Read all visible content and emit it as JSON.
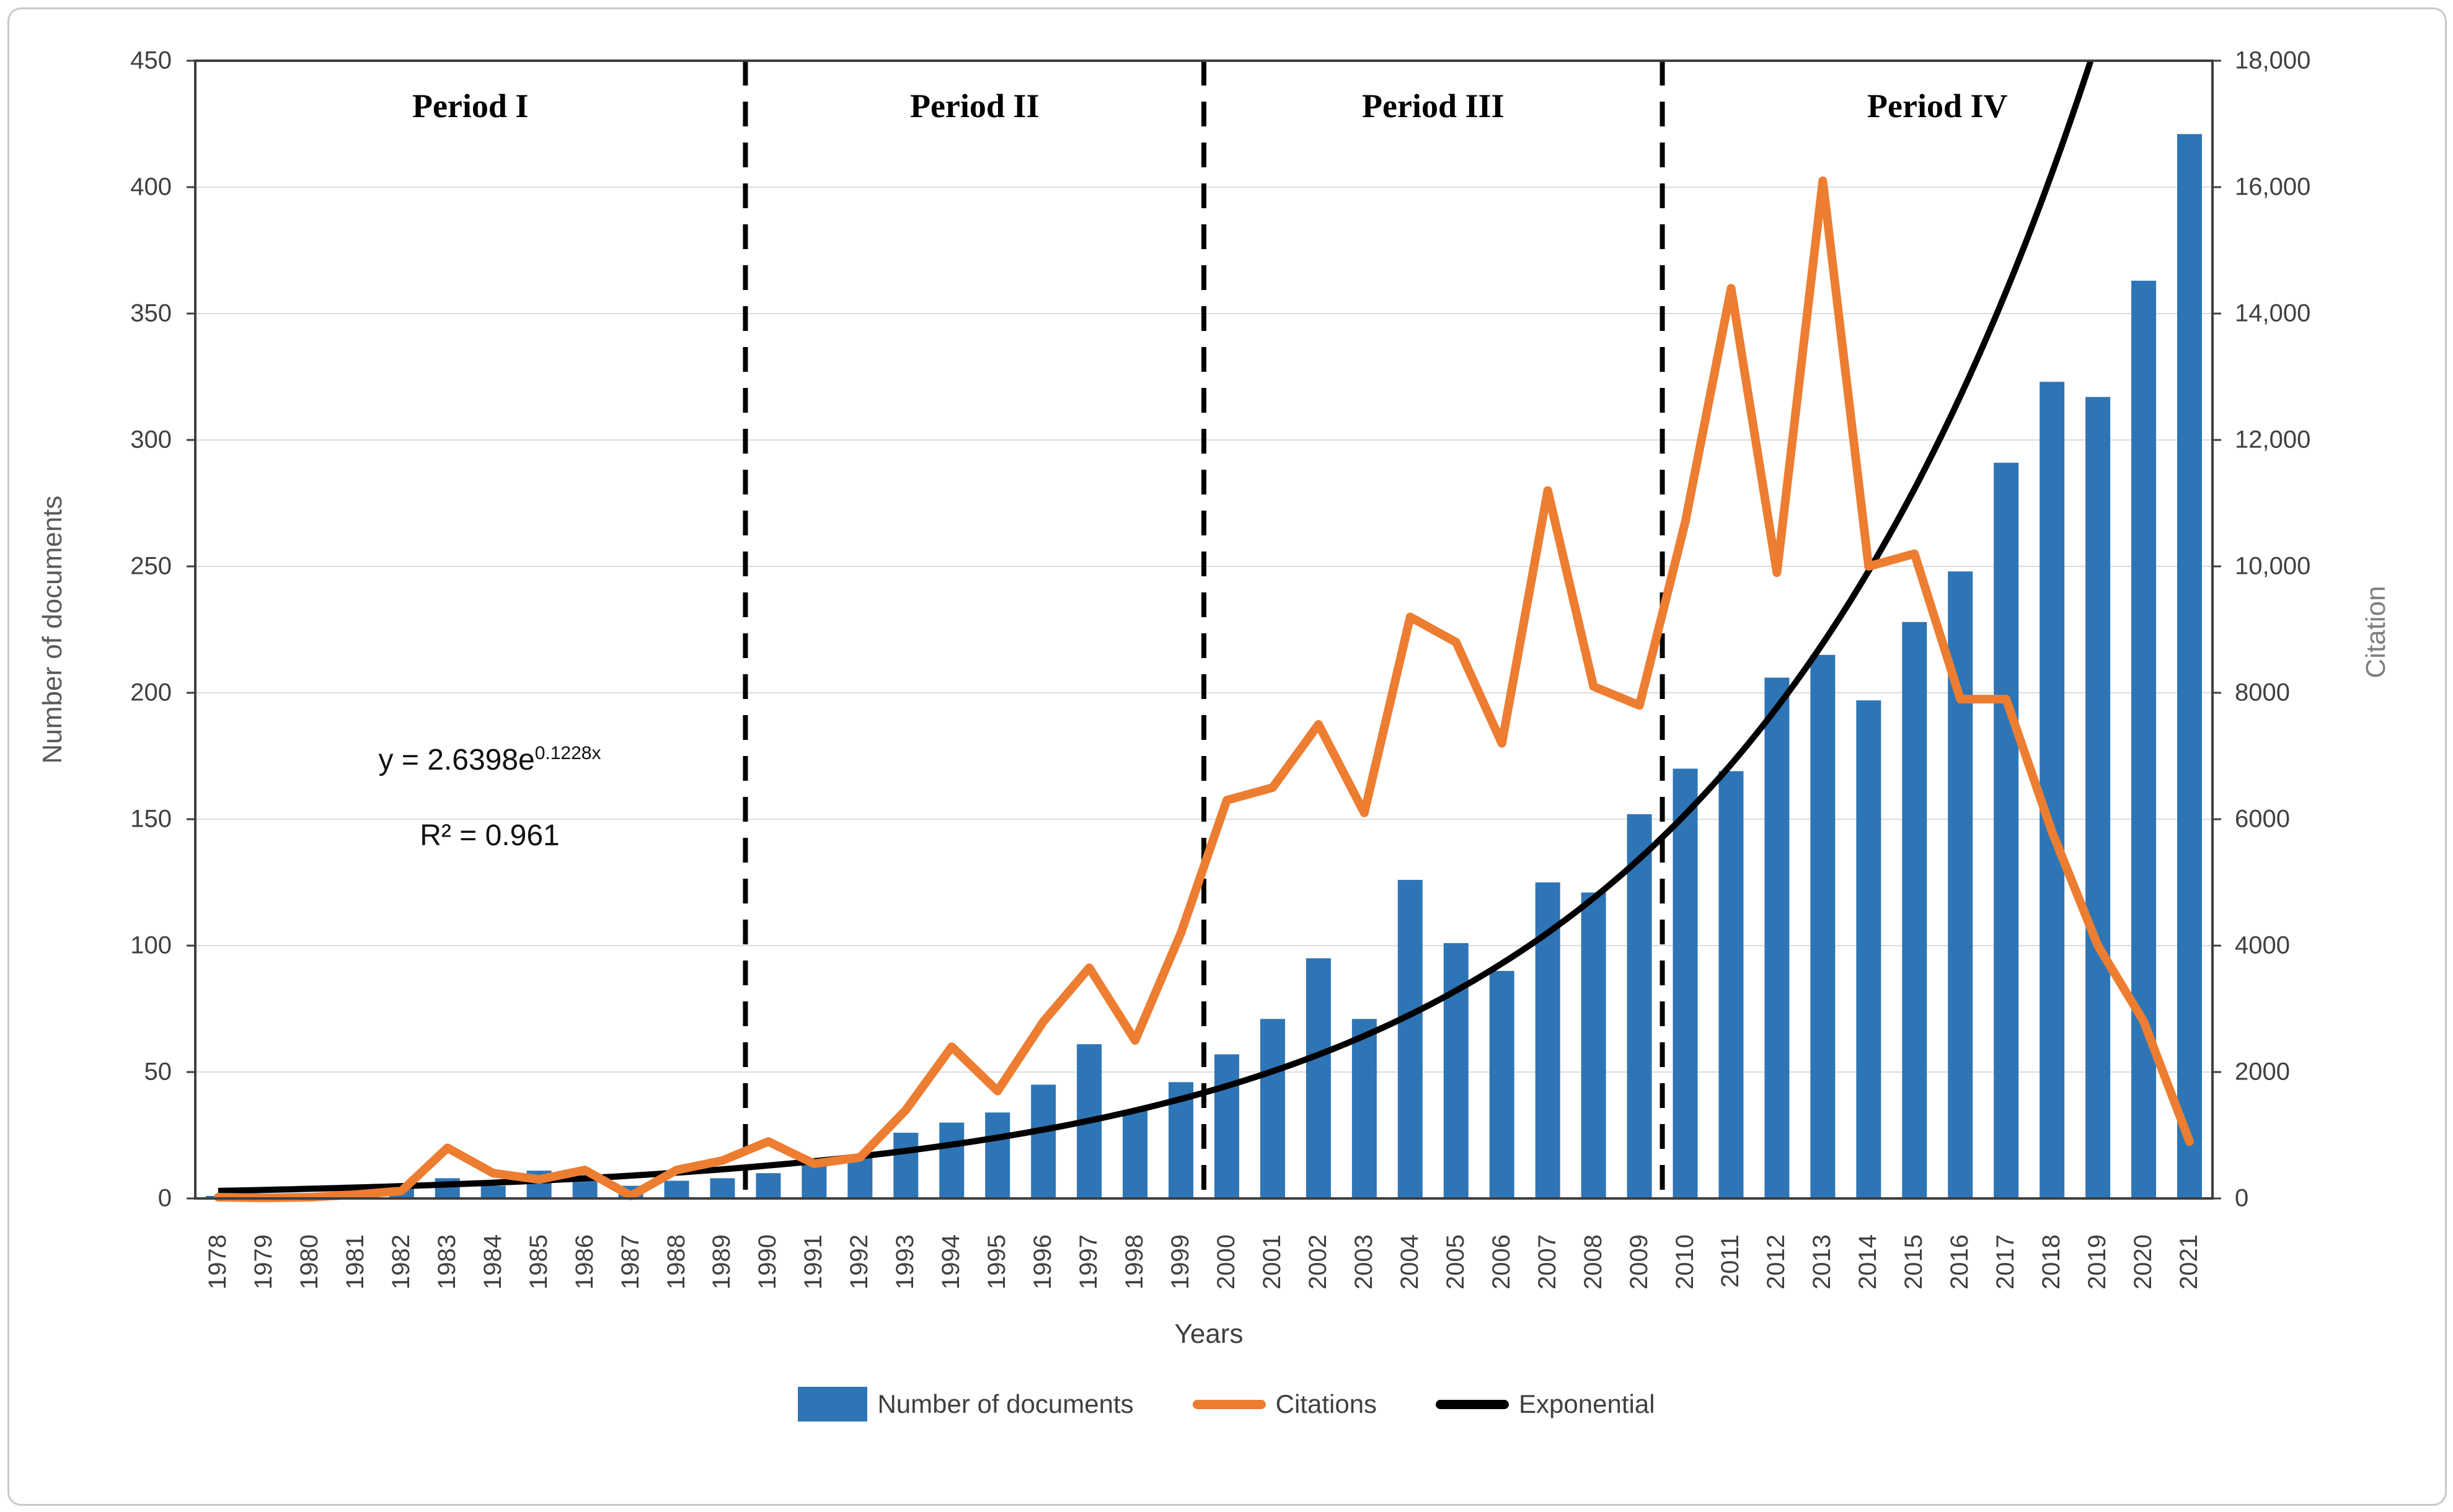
{
  "chart_data": {
    "type": "combo",
    "title": "",
    "categories": [
      "1978",
      "1979",
      "1980",
      "1981",
      "1982",
      "1983",
      "1984",
      "1985",
      "1986",
      "1987",
      "1988",
      "1989",
      "1990",
      "1991",
      "1992",
      "1993",
      "1994",
      "1995",
      "1996",
      "1997",
      "1998",
      "1999",
      "2000",
      "2001",
      "2002",
      "2003",
      "2004",
      "2005",
      "2006",
      "2007",
      "2008",
      "2009",
      "2010",
      "2011",
      "2012",
      "2013",
      "2014",
      "2015",
      "2016",
      "2017",
      "2018",
      "2019",
      "2020",
      "2021"
    ],
    "series": [
      {
        "name": "Number of documents",
        "type": "bar",
        "axis": "left",
        "color": "#2E75B6",
        "values": [
          1,
          1,
          2,
          3,
          5,
          8,
          5,
          11,
          8,
          5,
          7,
          8,
          10,
          14,
          16,
          26,
          30,
          34,
          45,
          61,
          35,
          46,
          57,
          71,
          95,
          71,
          126,
          101,
          90,
          125,
          121,
          152,
          170,
          169,
          206,
          215,
          197,
          228,
          248,
          291,
          323,
          317,
          363,
          421
        ]
      },
      {
        "name": "Citations",
        "type": "line",
        "axis": "right",
        "color": "#ED7D31",
        "values": [
          20,
          10,
          20,
          60,
          120,
          800,
          400,
          300,
          450,
          40,
          450,
          600,
          900,
          550,
          650,
          1400,
          2400,
          1700,
          2800,
          3650,
          2500,
          4200,
          6300,
          6500,
          7500,
          6100,
          9200,
          8800,
          7200,
          11200,
          8100,
          7800,
          10700,
          14400,
          9900,
          16100,
          10000,
          10200,
          7900,
          7900,
          5800,
          4000,
          2800,
          900
        ]
      },
      {
        "name": "Exponential",
        "type": "trendline",
        "axis": "left",
        "color": "#000000",
        "equation_a": 2.6398,
        "equation_b": 0.1228
      }
    ],
    "left_axis": {
      "label": "Number of documents",
      "min": 0,
      "max": 450,
      "step": 50,
      "ticks": [
        "0",
        "50",
        "100",
        "150",
        "200",
        "250",
        "300",
        "350",
        "400",
        "450"
      ]
    },
    "right_axis": {
      "label": "Citation",
      "min": 0,
      "max": 18000,
      "step": 2000,
      "ticks": [
        "0",
        "2000",
        "4000",
        "6000",
        "8000",
        "10,000",
        "12,000",
        "14,000",
        "16,000",
        "18,000"
      ]
    },
    "x_axis": {
      "label": "Years"
    },
    "annotations": {
      "equation": {
        "prefix": "y = 2.6398e",
        "exponent": "0.1228x",
        "r_squared": "R² = 0.961"
      },
      "periods": [
        {
          "label": "Period I",
          "start": "1978",
          "end": "1989"
        },
        {
          "label": "Period II",
          "start": "1990",
          "end": "1999"
        },
        {
          "label": "Period III",
          "start": "2000",
          "end": "2009"
        },
        {
          "label": "Period IV",
          "start": "2010",
          "end": "2021"
        }
      ],
      "period_dividers_after": [
        "1989",
        "1999",
        "2009"
      ]
    },
    "legend": [
      {
        "label": "Number of documents",
        "swatch": "bar",
        "color": "#2E75B6"
      },
      {
        "label": "Citations",
        "swatch": "line",
        "color": "#ED7D31"
      },
      {
        "label": "Exponential",
        "swatch": "line",
        "color": "#000000"
      }
    ],
    "layout": {
      "grid": true,
      "legend_position": "bottom",
      "colors": {
        "gridline": "#dcdcdc",
        "frame": "#3f3f3f",
        "tick_text": "#404040"
      }
    }
  }
}
